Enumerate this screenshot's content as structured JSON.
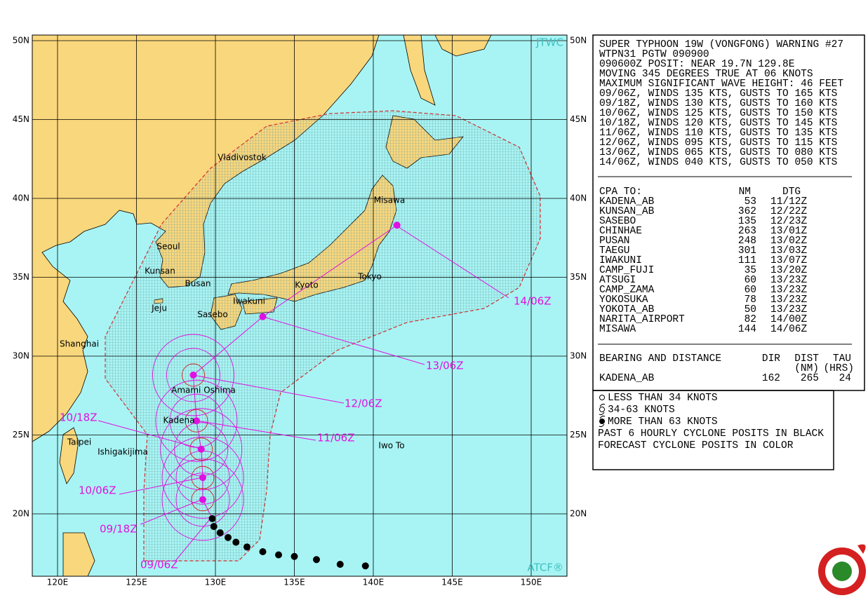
{
  "map": {
    "corner_labels": {
      "top_right": "JTWC",
      "bottom_right": "ATCF®"
    },
    "lat_ticks": [
      {
        "value": 50,
        "label": "50N"
      },
      {
        "value": 45,
        "label": "45N"
      },
      {
        "value": 40,
        "label": "40N"
      },
      {
        "value": 35,
        "label": "35N"
      },
      {
        "value": 30,
        "label": "30N"
      },
      {
        "value": 25,
        "label": "25N"
      },
      {
        "value": 20,
        "label": "20N"
      }
    ],
    "lon_ticks": [
      {
        "value": 120,
        "label": "120E"
      },
      {
        "value": 125,
        "label": "125E"
      },
      {
        "value": 130,
        "label": "130E"
      },
      {
        "value": 135,
        "label": "135E"
      },
      {
        "value": 140,
        "label": "140E"
      },
      {
        "value": 145,
        "label": "145E"
      },
      {
        "value": 150,
        "label": "150E"
      }
    ],
    "places": [
      "Vladivostok",
      "Misawa",
      "Seoul",
      "Kunsan",
      "Busan",
      "Tokyo",
      "Kyoto",
      "Iwakuni",
      "Jeju",
      "Sasebo",
      "Shanghai",
      "Amami Oshima",
      "Kadena",
      "Taipei",
      "Ishigakijima",
      "Iwo To"
    ],
    "past_track": [
      {
        "lon": 139.5,
        "lat": 16.7
      },
      {
        "lon": 137.9,
        "lat": 16.8
      },
      {
        "lon": 136.4,
        "lat": 17.1
      },
      {
        "lon": 135.0,
        "lat": 17.3
      },
      {
        "lon": 134.0,
        "lat": 17.4
      },
      {
        "lon": 133.0,
        "lat": 17.6
      },
      {
        "lon": 132.0,
        "lat": 17.9
      },
      {
        "lon": 131.3,
        "lat": 18.2
      },
      {
        "lon": 130.8,
        "lat": 18.5
      },
      {
        "lon": 130.3,
        "lat": 18.8
      },
      {
        "lon": 129.9,
        "lat": 19.2
      },
      {
        "lon": 129.8,
        "lat": 19.7
      }
    ],
    "forecast_labels": [
      "09/06Z",
      "09/18Z",
      "10/06Z",
      "10/18Z",
      "11/06Z",
      "12/06Z",
      "13/06Z",
      "14/06Z"
    ],
    "forecast_track": [
      {
        "lon": 129.2,
        "lat": 20.9
      },
      {
        "lon": 129.2,
        "lat": 22.3
      },
      {
        "lon": 129.1,
        "lat": 24.1
      },
      {
        "lon": 128.8,
        "lat": 25.9
      },
      {
        "lon": 128.6,
        "lat": 28.8
      },
      {
        "lon": 133.0,
        "lat": 32.5
      },
      {
        "lon": 141.5,
        "lat": 38.3
      }
    ]
  },
  "warning": {
    "lines": [
      "SUPER TYPHOON 19W (VONGFONG) WARNING #27",
      "WTPN31 PGTW 090900",
      "090600Z POSIT: NEAR 19.7N 129.8E",
      "MOVING 345 DEGREES TRUE AT 06 KNOTS",
      "MAXIMUM SIGNIFICANT WAVE HEIGHT: 46 FEET",
      "09/06Z, WINDS 135 KTS, GUSTS TO 165 KTS",
      "09/18Z, WINDS 130 KTS, GUSTS TO 160 KTS",
      "10/06Z, WINDS 125 KTS, GUSTS TO 150 KTS",
      "10/18Z, WINDS 120 KTS, GUSTS TO 145 KTS",
      "11/06Z, WINDS 110 KTS, GUSTS TO 135 KTS",
      "12/06Z, WINDS 095 KTS, GUSTS TO 115 KTS",
      "13/06Z, WINDS 065 KTS, GUSTS TO 080 KTS",
      "14/06Z, WINDS 040 KTS, GUSTS TO 050 KTS"
    ]
  },
  "cpa": {
    "header": [
      "CPA TO:",
      "NM",
      "DTG"
    ],
    "rows": [
      [
        "KADENA_AB",
        53,
        "11/12Z"
      ],
      [
        "KUNSAN_AB",
        362,
        "12/22Z"
      ],
      [
        "SASEBO",
        135,
        "12/23Z"
      ],
      [
        "CHINHAE",
        263,
        "13/01Z"
      ],
      [
        "PUSAN",
        248,
        "13/02Z"
      ],
      [
        "TAEGU",
        301,
        "13/03Z"
      ],
      [
        "IWAKUNI",
        111,
        "13/07Z"
      ],
      [
        "CAMP_FUJI",
        35,
        "13/20Z"
      ],
      [
        "ATSUGI",
        60,
        "13/23Z"
      ],
      [
        "CAMP_ZAMA",
        60,
        "13/23Z"
      ],
      [
        "YOKOSUKA",
        78,
        "13/23Z"
      ],
      [
        "YOKOTA_AB",
        50,
        "13/23Z"
      ],
      [
        "NARITA_AIRPORT",
        82,
        "14/00Z"
      ],
      [
        "MISAWA",
        144,
        "14/06Z"
      ]
    ]
  },
  "bearing": {
    "header": [
      "BEARING AND DISTANCE",
      "DIR",
      "DIST",
      "TAU"
    ],
    "units": [
      "(NM)",
      "(HRS)"
    ],
    "rows": [
      [
        "KADENA_AB",
        162,
        265,
        24
      ]
    ]
  },
  "legend": {
    "items": [
      "LESS THAN 34 KNOTS",
      "34-63 KNOTS",
      "MORE THAN 63 KNOTS"
    ],
    "notes": [
      "PAST 6 HOURLY CYCLONE POSITS IN BLACK",
      "FORECAST CYCLONE POSITS IN COLOR"
    ]
  }
}
